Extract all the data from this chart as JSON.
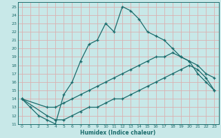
{
  "xlabel": "Humidex (Indice chaleur)",
  "bg_color": "#c8e8e8",
  "grid_color": "#dbb0b0",
  "line_color": "#1a6b6b",
  "xlim": [
    -0.5,
    23.5
  ],
  "ylim": [
    11,
    25.5
  ],
  "xticks": [
    0,
    1,
    2,
    3,
    4,
    5,
    6,
    7,
    8,
    9,
    10,
    11,
    12,
    13,
    14,
    15,
    16,
    17,
    18,
    19,
    20,
    21,
    22,
    23
  ],
  "yticks": [
    11,
    12,
    13,
    14,
    15,
    16,
    17,
    18,
    19,
    20,
    21,
    22,
    23,
    24,
    25
  ],
  "curve1_x": [
    0,
    1,
    2,
    3,
    4,
    5,
    6,
    7,
    8,
    9,
    10,
    11,
    12,
    13,
    14,
    15,
    16,
    17,
    18,
    19,
    20,
    21,
    22,
    23
  ],
  "curve1_y": [
    14,
    13,
    12,
    11.5,
    11,
    14.5,
    16,
    18.5,
    20.5,
    21,
    23,
    22,
    25,
    24.5,
    23.5,
    22,
    21.5,
    21,
    20,
    19,
    18.5,
    17,
    16,
    15
  ],
  "curve2_x": [
    0,
    3,
    4,
    5,
    6,
    7,
    8,
    9,
    10,
    11,
    12,
    13,
    14,
    15,
    16,
    17,
    18,
    19,
    20,
    21,
    22,
    23
  ],
  "curve2_y": [
    14,
    13,
    13,
    13.5,
    14,
    14.5,
    15,
    15.5,
    16,
    16.5,
    17,
    17.5,
    18,
    18.5,
    19,
    19,
    19.5,
    19,
    18.5,
    18,
    17,
    16.5
  ],
  "curve3_x": [
    0,
    3,
    4,
    5,
    6,
    7,
    8,
    9,
    10,
    11,
    12,
    13,
    14,
    15,
    16,
    17,
    18,
    19,
    20,
    21,
    22,
    23
  ],
  "curve3_y": [
    14,
    12,
    11.5,
    11.5,
    12,
    12.5,
    13,
    13,
    13.5,
    14,
    14,
    14.5,
    15,
    15.5,
    16,
    16.5,
    17,
    17.5,
    18,
    17.5,
    16.5,
    15
  ]
}
